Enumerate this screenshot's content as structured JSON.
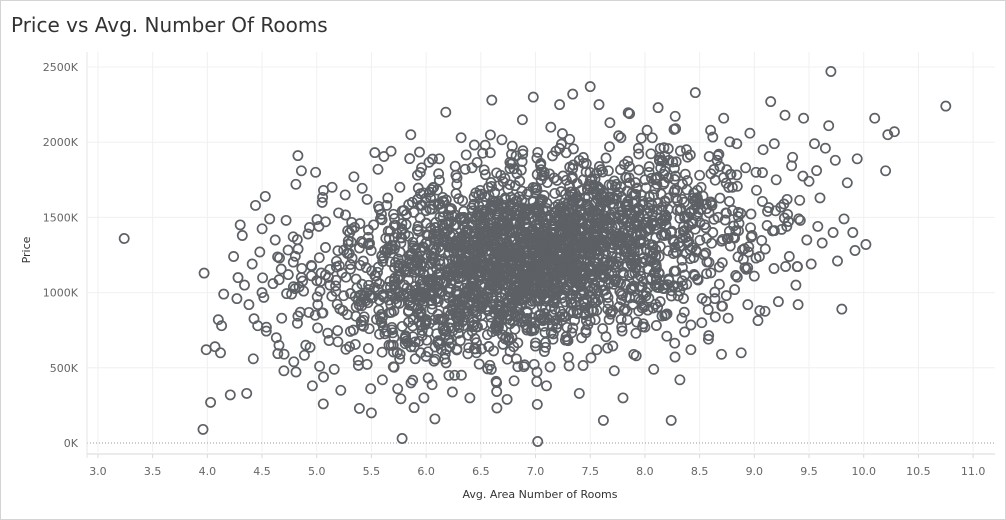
{
  "chart_data": {
    "type": "scatter",
    "title": "Price vs Avg. Number Of Rooms",
    "xlabel": "Avg. Area Number of Rooms",
    "ylabel": "Price",
    "xlim": [
      2.9,
      11.2
    ],
    "ylim": [
      -60000,
      2600000
    ],
    "x_ticks": [
      {
        "value": 3.0,
        "label": "3.0"
      },
      {
        "value": 3.5,
        "label": "3.5"
      },
      {
        "value": 4.0,
        "label": "4.0"
      },
      {
        "value": 4.5,
        "label": "4.5"
      },
      {
        "value": 5.0,
        "label": "5.0"
      },
      {
        "value": 5.5,
        "label": "5.5"
      },
      {
        "value": 6.0,
        "label": "6.0"
      },
      {
        "value": 6.5,
        "label": "6.5"
      },
      {
        "value": 7.0,
        "label": "7.0"
      },
      {
        "value": 7.5,
        "label": "7.5"
      },
      {
        "value": 8.0,
        "label": "8.0"
      },
      {
        "value": 8.5,
        "label": "8.5"
      },
      {
        "value": 9.0,
        "label": "9.0"
      },
      {
        "value": 9.5,
        "label": "9.5"
      },
      {
        "value": 10.0,
        "label": "10.0"
      },
      {
        "value": 10.5,
        "label": "10.5"
      },
      {
        "value": 11.0,
        "label": "11.0"
      }
    ],
    "y_ticks": [
      {
        "value": 0,
        "label": "0K"
      },
      {
        "value": 500000,
        "label": "500K"
      },
      {
        "value": 1000000,
        "label": "1000K"
      },
      {
        "value": 1500000,
        "label": "1500K"
      },
      {
        "value": 2000000,
        "label": "2000K"
      },
      {
        "value": 2500000,
        "label": "2500K"
      }
    ],
    "grid": true,
    "zero_line": "dotted",
    "marker": "hollow-circle",
    "marker_color": "#5d6166",
    "points": [
      [
        3.24,
        1360000
      ],
      [
        3.97,
        1130000
      ],
      [
        3.96,
        90000
      ],
      [
        3.99,
        620000
      ],
      [
        4.03,
        270000
      ],
      [
        4.07,
        640000
      ],
      [
        4.1,
        820000
      ],
      [
        4.12,
        600000
      ],
      [
        4.13,
        780000
      ],
      [
        4.15,
        990000
      ],
      [
        4.21,
        320000
      ],
      [
        4.24,
        1240000
      ],
      [
        4.27,
        960000
      ],
      [
        4.28,
        1100000
      ],
      [
        4.3,
        1450000
      ],
      [
        4.32,
        1380000
      ],
      [
        4.34,
        1050000
      ],
      [
        4.36,
        330000
      ],
      [
        4.38,
        920000
      ],
      [
        4.41,
        1190000
      ],
      [
        4.42,
        560000
      ],
      [
        4.44,
        1580000
      ],
      [
        4.46,
        780000
      ],
      [
        4.48,
        1270000
      ],
      [
        4.5,
        1000000
      ],
      [
        4.53,
        1640000
      ],
      [
        4.54,
        770000
      ],
      [
        4.57,
        1490000
      ],
      [
        4.6,
        1060000
      ],
      [
        4.62,
        1350000
      ],
      [
        4.63,
        700000
      ],
      [
        4.66,
        1230000
      ],
      [
        4.68,
        830000
      ],
      [
        4.7,
        480000
      ],
      [
        4.72,
        1480000
      ],
      [
        4.74,
        1120000
      ],
      [
        4.77,
        990000
      ],
      [
        4.79,
        540000
      ],
      [
        4.81,
        1720000
      ],
      [
        4.83,
        1290000
      ],
      [
        4.85,
        870000
      ],
      [
        4.86,
        1810000
      ],
      [
        4.88,
        1010000
      ],
      [
        4.9,
        650000
      ],
      [
        4.92,
        1390000
      ],
      [
        4.95,
        1180000
      ],
      [
        4.96,
        380000
      ],
      [
        4.99,
        1800000
      ],
      [
        5.01,
        920000
      ],
      [
        5.02,
        1440000
      ],
      [
        5.05,
        1600000
      ],
      [
        5.06,
        260000
      ],
      [
        5.08,
        1300000
      ],
      [
        5.1,
        730000
      ],
      [
        5.12,
        1050000
      ],
      [
        5.14,
        1700000
      ],
      [
        5.16,
        490000
      ],
      [
        5.18,
        1170000
      ],
      [
        5.2,
        1530000
      ],
      [
        5.22,
        350000
      ],
      [
        5.24,
        880000
      ],
      [
        5.26,
        1650000
      ],
      [
        5.28,
        1260000
      ],
      [
        5.3,
        640000
      ],
      [
        5.32,
        1420000
      ],
      [
        5.34,
        1770000
      ],
      [
        5.36,
        1090000
      ],
      [
        5.38,
        550000
      ],
      [
        5.39,
        230000
      ],
      [
        5.41,
        1340000
      ],
      [
        5.44,
        980000
      ],
      [
        5.46,
        1620000
      ],
      [
        5.48,
        760000
      ],
      [
        5.5,
        200000
      ],
      [
        5.52,
        1450000
      ],
      [
        5.54,
        1110000
      ],
      [
        5.56,
        1820000
      ],
      [
        5.58,
        840000
      ],
      [
        5.6,
        420000
      ],
      [
        5.62,
        1280000
      ],
      [
        5.64,
        1580000
      ],
      [
        5.66,
        950000
      ],
      [
        5.68,
        1940000
      ],
      [
        5.7,
        650000
      ],
      [
        5.72,
        1200000
      ],
      [
        5.74,
        360000
      ],
      [
        5.76,
        1700000
      ],
      [
        5.78,
        30000
      ],
      [
        5.8,
        1050000
      ],
      [
        5.82,
        1520000
      ],
      [
        5.84,
        880000
      ],
      [
        5.86,
        2050000
      ],
      [
        5.88,
        1310000
      ],
      [
        5.9,
        560000
      ],
      [
        5.92,
        1780000
      ],
      [
        5.94,
        1150000
      ],
      [
        5.96,
        970000
      ],
      [
        5.98,
        300000
      ],
      [
        6.0,
        1460000
      ],
      [
        6.02,
        740000
      ],
      [
        6.04,
        1630000
      ],
      [
        6.06,
        1230000
      ],
      [
        6.08,
        160000
      ],
      [
        6.1,
        1040000
      ],
      [
        6.12,
        1890000
      ],
      [
        6.14,
        620000
      ],
      [
        6.16,
        1350000
      ],
      [
        6.18,
        2200000
      ],
      [
        6.2,
        880000
      ],
      [
        6.22,
        1560000
      ],
      [
        6.24,
        1120000
      ],
      [
        6.26,
        450000
      ],
      [
        6.28,
        1720000
      ],
      [
        6.3,
        990000
      ],
      [
        6.32,
        2030000
      ],
      [
        6.34,
        780000
      ],
      [
        6.36,
        1400000
      ],
      [
        6.38,
        1250000
      ],
      [
        6.4,
        300000
      ],
      [
        6.42,
        1830000
      ],
      [
        6.44,
        1080000
      ],
      [
        6.46,
        600000
      ],
      [
        6.48,
        1510000
      ],
      [
        6.5,
        1320000
      ],
      [
        6.52,
        930000
      ],
      [
        6.54,
        1980000
      ],
      [
        6.56,
        720000
      ],
      [
        6.58,
        1190000
      ],
      [
        6.6,
        2280000
      ],
      [
        6.62,
        1600000
      ],
      [
        6.64,
        410000
      ],
      [
        6.66,
        1030000
      ],
      [
        6.68,
        1450000
      ],
      [
        6.7,
        860000
      ],
      [
        6.72,
        1760000
      ],
      [
        6.74,
        290000
      ],
      [
        6.76,
        1280000
      ],
      [
        6.78,
        1920000
      ],
      [
        6.8,
        640000
      ],
      [
        6.82,
        1130000
      ],
      [
        6.84,
        1550000
      ],
      [
        6.86,
        980000
      ],
      [
        6.88,
        2150000
      ],
      [
        6.9,
        520000
      ],
      [
        6.92,
        1390000
      ],
      [
        6.94,
        1670000
      ],
      [
        6.96,
        800000
      ],
      [
        6.98,
        2300000
      ],
      [
        7.0,
        1220000
      ],
      [
        7.02,
        10000
      ],
      [
        7.04,
        1480000
      ],
      [
        7.06,
        910000
      ],
      [
        7.08,
        1800000
      ],
      [
        7.1,
        380000
      ],
      [
        7.12,
        1330000
      ],
      [
        7.14,
        2100000
      ],
      [
        7.16,
        690000
      ],
      [
        7.18,
        1570000
      ],
      [
        7.2,
        1060000
      ],
      [
        7.22,
        2250000
      ],
      [
        7.24,
        1410000
      ],
      [
        7.26,
        840000
      ],
      [
        7.28,
        1930000
      ],
      [
        7.3,
        570000
      ],
      [
        7.32,
        1180000
      ],
      [
        7.34,
        2320000
      ],
      [
        7.36,
        1020000
      ],
      [
        7.38,
        1640000
      ],
      [
        7.4,
        330000
      ],
      [
        7.42,
        1370000
      ],
      [
        7.44,
        1860000
      ],
      [
        7.46,
        750000
      ],
      [
        7.48,
        1250000
      ],
      [
        7.5,
        2370000
      ],
      [
        7.52,
        950000
      ],
      [
        7.54,
        1590000
      ],
      [
        7.56,
        620000
      ],
      [
        7.58,
        2250000
      ],
      [
        7.6,
        1150000
      ],
      [
        7.62,
        150000
      ],
      [
        7.64,
        1490000
      ],
      [
        7.66,
        890000
      ],
      [
        7.68,
        2130000
      ],
      [
        7.7,
        1300000
      ],
      [
        7.72,
        480000
      ],
      [
        7.74,
        1720000
      ],
      [
        7.76,
        1070000
      ],
      [
        7.78,
        2030000
      ],
      [
        7.8,
        300000
      ],
      [
        7.82,
        1420000
      ],
      [
        7.84,
        820000
      ],
      [
        7.86,
        2190000
      ],
      [
        7.88,
        1210000
      ],
      [
        7.9,
        1650000
      ],
      [
        7.92,
        580000
      ],
      [
        7.94,
        1960000
      ],
      [
        7.96,
        1110000
      ],
      [
        7.98,
        1450000
      ],
      [
        8.0,
        770000
      ],
      [
        8.02,
        2080000
      ],
      [
        8.04,
        1320000
      ],
      [
        8.06,
        1760000
      ],
      [
        8.08,
        490000
      ],
      [
        8.1,
        1190000
      ],
      [
        8.12,
        2230000
      ],
      [
        8.14,
        940000
      ],
      [
        8.16,
        1570000
      ],
      [
        8.18,
        1380000
      ],
      [
        8.2,
        710000
      ],
      [
        8.22,
        1880000
      ],
      [
        8.24,
        150000
      ],
      [
        8.26,
        1260000
      ],
      [
        8.28,
        2090000
      ],
      [
        8.3,
        1040000
      ],
      [
        8.32,
        420000
      ],
      [
        8.34,
        1620000
      ],
      [
        8.36,
        870000
      ],
      [
        8.38,
        1950000
      ],
      [
        8.4,
        1340000
      ],
      [
        8.42,
        620000
      ],
      [
        8.44,
        1470000
      ],
      [
        8.46,
        2330000
      ],
      [
        8.48,
        1090000
      ],
      [
        8.5,
        1780000
      ],
      [
        8.52,
        800000
      ],
      [
        8.54,
        1250000
      ],
      [
        8.56,
        1590000
      ],
      [
        8.58,
        690000
      ],
      [
        8.6,
        2080000
      ],
      [
        8.62,
        1400000
      ],
      [
        8.64,
        960000
      ],
      [
        8.66,
        1880000
      ],
      [
        8.68,
        1170000
      ],
      [
        8.7,
        590000
      ],
      [
        8.72,
        2160000
      ],
      [
        8.74,
        1530000
      ],
      [
        8.76,
        830000
      ],
      [
        8.78,
        1310000
      ],
      [
        8.8,
        1700000
      ],
      [
        8.82,
        1020000
      ],
      [
        8.84,
        1990000
      ],
      [
        8.86,
        1460000
      ],
      [
        8.88,
        600000
      ],
      [
        8.9,
        1220000
      ],
      [
        8.92,
        1830000
      ],
      [
        8.94,
        920000
      ],
      [
        8.96,
        2060000
      ],
      [
        8.98,
        1380000
      ],
      [
        9.0,
        1110000
      ],
      [
        9.02,
        1680000
      ],
      [
        9.05,
        880000
      ],
      [
        9.08,
        1950000
      ],
      [
        9.1,
        1290000
      ],
      [
        9.12,
        1540000
      ],
      [
        9.15,
        2270000
      ],
      [
        9.18,
        1160000
      ],
      [
        9.2,
        1750000
      ],
      [
        9.22,
        940000
      ],
      [
        9.25,
        1420000
      ],
      [
        9.28,
        2180000
      ],
      [
        9.3,
        1620000
      ],
      [
        9.32,
        1240000
      ],
      [
        9.35,
        1900000
      ],
      [
        9.38,
        1050000
      ],
      [
        9.4,
        920000
      ],
      [
        9.42,
        1480000
      ],
      [
        9.45,
        2160000
      ],
      [
        9.48,
        1350000
      ],
      [
        9.5,
        1740000
      ],
      [
        9.52,
        1190000
      ],
      [
        9.55,
        1990000
      ],
      [
        9.58,
        1440000
      ],
      [
        9.6,
        1630000
      ],
      [
        9.62,
        1330000
      ],
      [
        9.65,
        1960000
      ],
      [
        9.68,
        2110000
      ],
      [
        9.7,
        2470000
      ],
      [
        9.72,
        1400000
      ],
      [
        9.74,
        1880000
      ],
      [
        9.76,
        1210000
      ],
      [
        9.8,
        890000
      ],
      [
        9.82,
        1490000
      ],
      [
        9.85,
        1730000
      ],
      [
        9.9,
        1400000
      ],
      [
        9.92,
        1280000
      ],
      [
        9.94,
        1890000
      ],
      [
        10.02,
        1320000
      ],
      [
        10.1,
        2160000
      ],
      [
        10.2,
        1810000
      ],
      [
        10.22,
        2050000
      ],
      [
        10.28,
        2070000
      ],
      [
        10.75,
        2240000
      ]
    ]
  }
}
